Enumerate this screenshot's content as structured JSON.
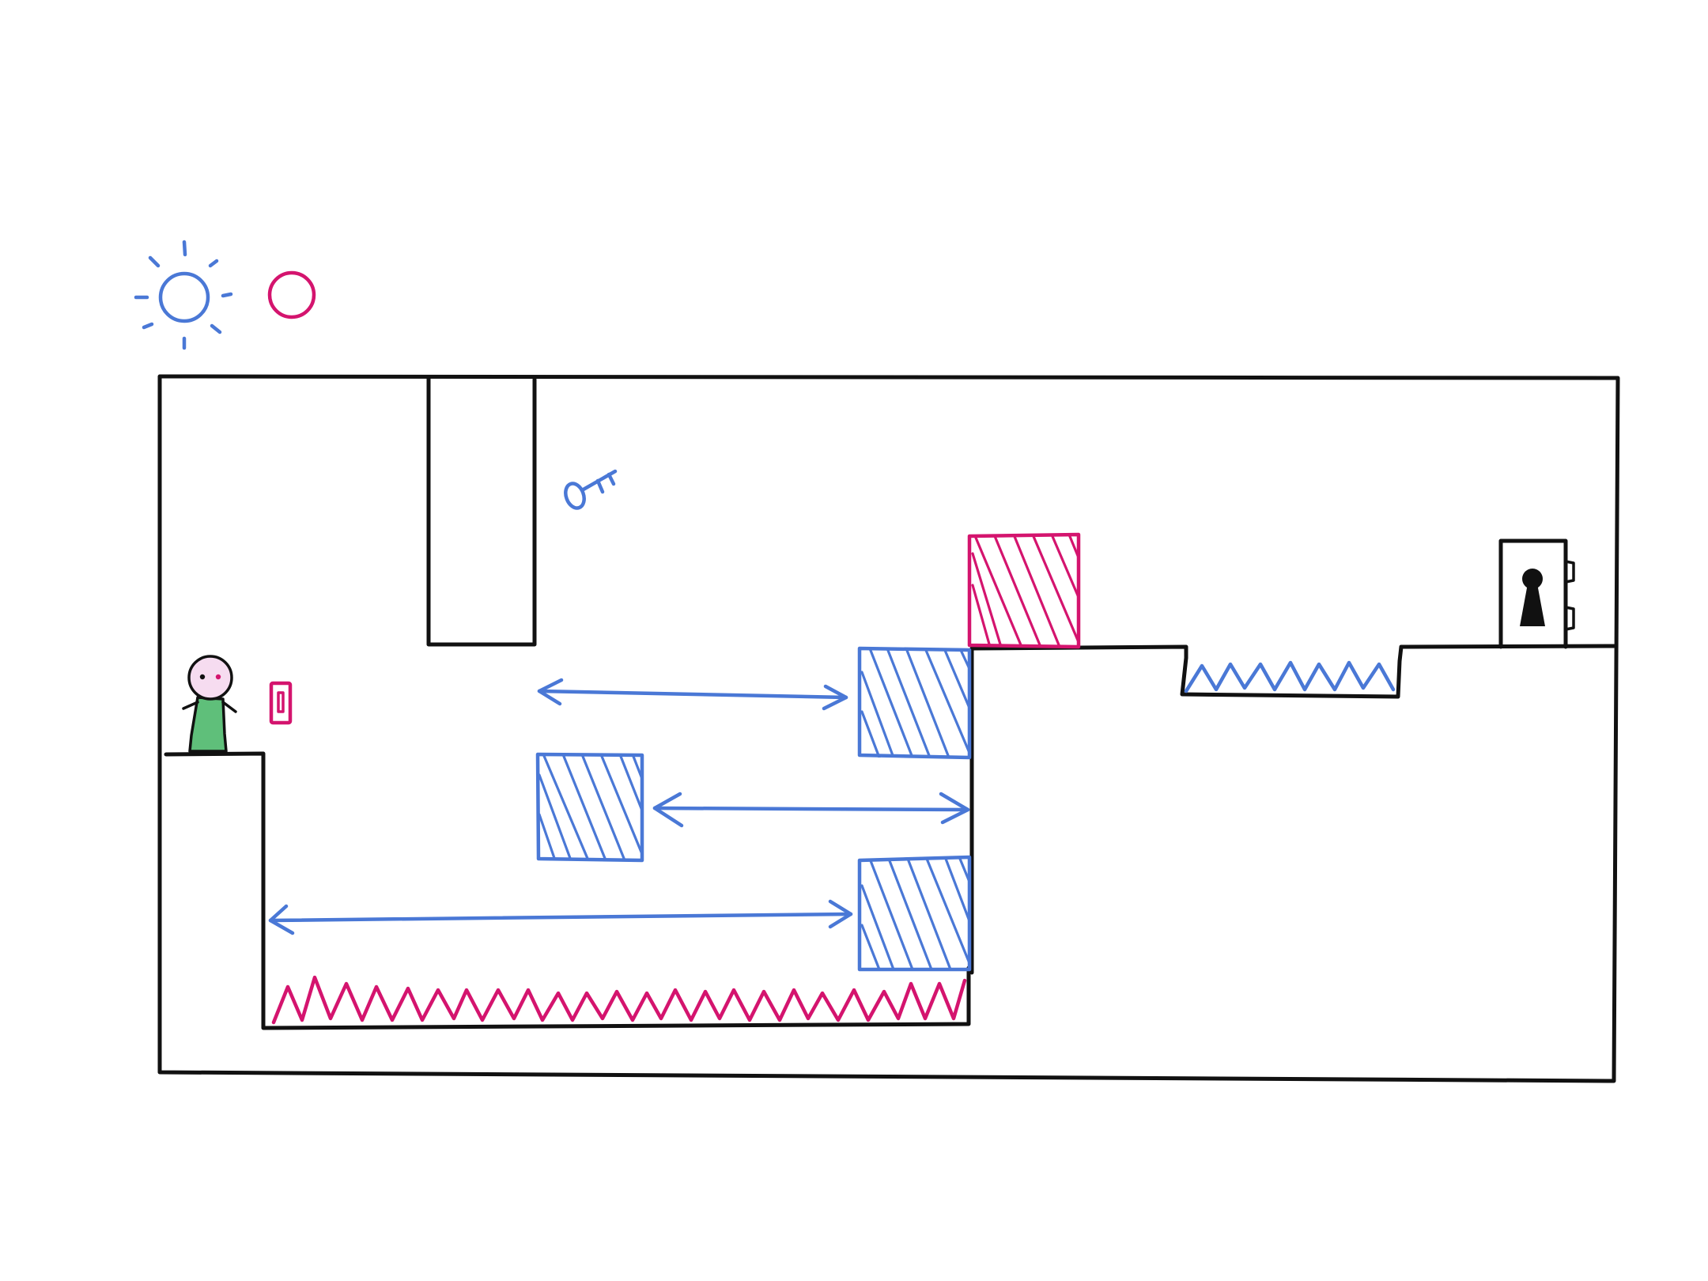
{
  "palette": {
    "ink": "#111111",
    "blue": "#4a78d6",
    "magenta": "#d4146e",
    "skin": "#f6dcf0",
    "shirt": "#5fbf7a"
  },
  "hud": {
    "active_color_indicator": {
      "icon": "blue-sun-icon",
      "state": "active",
      "color": "blue"
    },
    "inactive_color_indicator": {
      "icon": "magenta-circle-icon",
      "state": "inactive",
      "color": "magenta"
    }
  },
  "level": {
    "player": {
      "icon": "stick-figure-character",
      "shirt": "green"
    },
    "switch": {
      "icon": "magenta-toggle-switch",
      "color": "magenta"
    },
    "key": {
      "icon": "blue-key-icon",
      "color": "blue"
    },
    "door": {
      "icon": "locked-door-keyhole-icon",
      "state": "locked"
    },
    "hazards": [
      {
        "name": "magenta-spike-pit",
        "color": "magenta"
      },
      {
        "name": "blue-spike-pit",
        "color": "blue"
      }
    ],
    "blocks": [
      {
        "name": "magenta-crate",
        "color": "magenta",
        "motion": "static"
      },
      {
        "name": "blue-moving-block-top",
        "color": "blue",
        "motion": "horizontal"
      },
      {
        "name": "blue-moving-block-middle",
        "color": "blue",
        "motion": "horizontal"
      },
      {
        "name": "blue-moving-block-bottom",
        "color": "blue",
        "motion": "horizontal"
      }
    ]
  }
}
